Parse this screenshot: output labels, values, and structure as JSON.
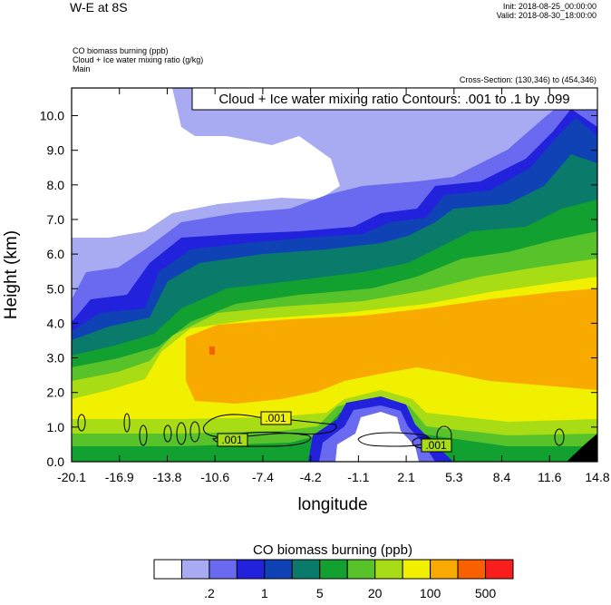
{
  "header": {
    "title": "W-E at 8S",
    "init": "Init: 2018-08-25_00:00:00",
    "valid": "Valid: 2018-08-30_18:00:00",
    "variables": [
      "CO biomass burning   (ppb)",
      "Cloud + Ice water mixing ratio   (g/kg)",
      "Main"
    ],
    "cross_section": "Cross-Section: (130,346) to (454,346)"
  },
  "chart_data": {
    "type": "heatmap",
    "title": "",
    "contour_info": "Cloud + Ice water mixing ratio Contours: .001 to .1 by .099",
    "xlabel": "longitude",
    "ylabel": "Height (km)",
    "x_ticks": [
      "-20.1",
      "-16.9",
      "-13.8",
      "-10.6",
      "-7.4",
      "-4.2",
      "-1.1",
      "2.1",
      "5.3",
      "8.4",
      "11.6",
      "14.8"
    ],
    "y_ticks": [
      "0.0",
      "1.0",
      "2.0",
      "3.0",
      "4.0",
      "5.0",
      "6.0",
      "7.0",
      "8.0",
      "9.0",
      "10.0"
    ],
    "xlim": [
      -20.1,
      14.8
    ],
    "ylim": [
      0,
      10.8
    ],
    "contour_labels": [
      ".001",
      ".001",
      ".001"
    ],
    "colorbar": {
      "title": "CO biomass burning  (ppb)",
      "colors": [
        "#ffffff",
        "#a8aaf2",
        "#6a6af0",
        "#2222dc",
        "#0f42b4",
        "#0a7a6a",
        "#12a030",
        "#58c22a",
        "#a8dc14",
        "#f0f000",
        "#f8aa00",
        "#f86000",
        "#f81e1e"
      ],
      "tick_labels": [
        ".2",
        "1",
        "5",
        "20",
        "100",
        "500"
      ]
    }
  }
}
